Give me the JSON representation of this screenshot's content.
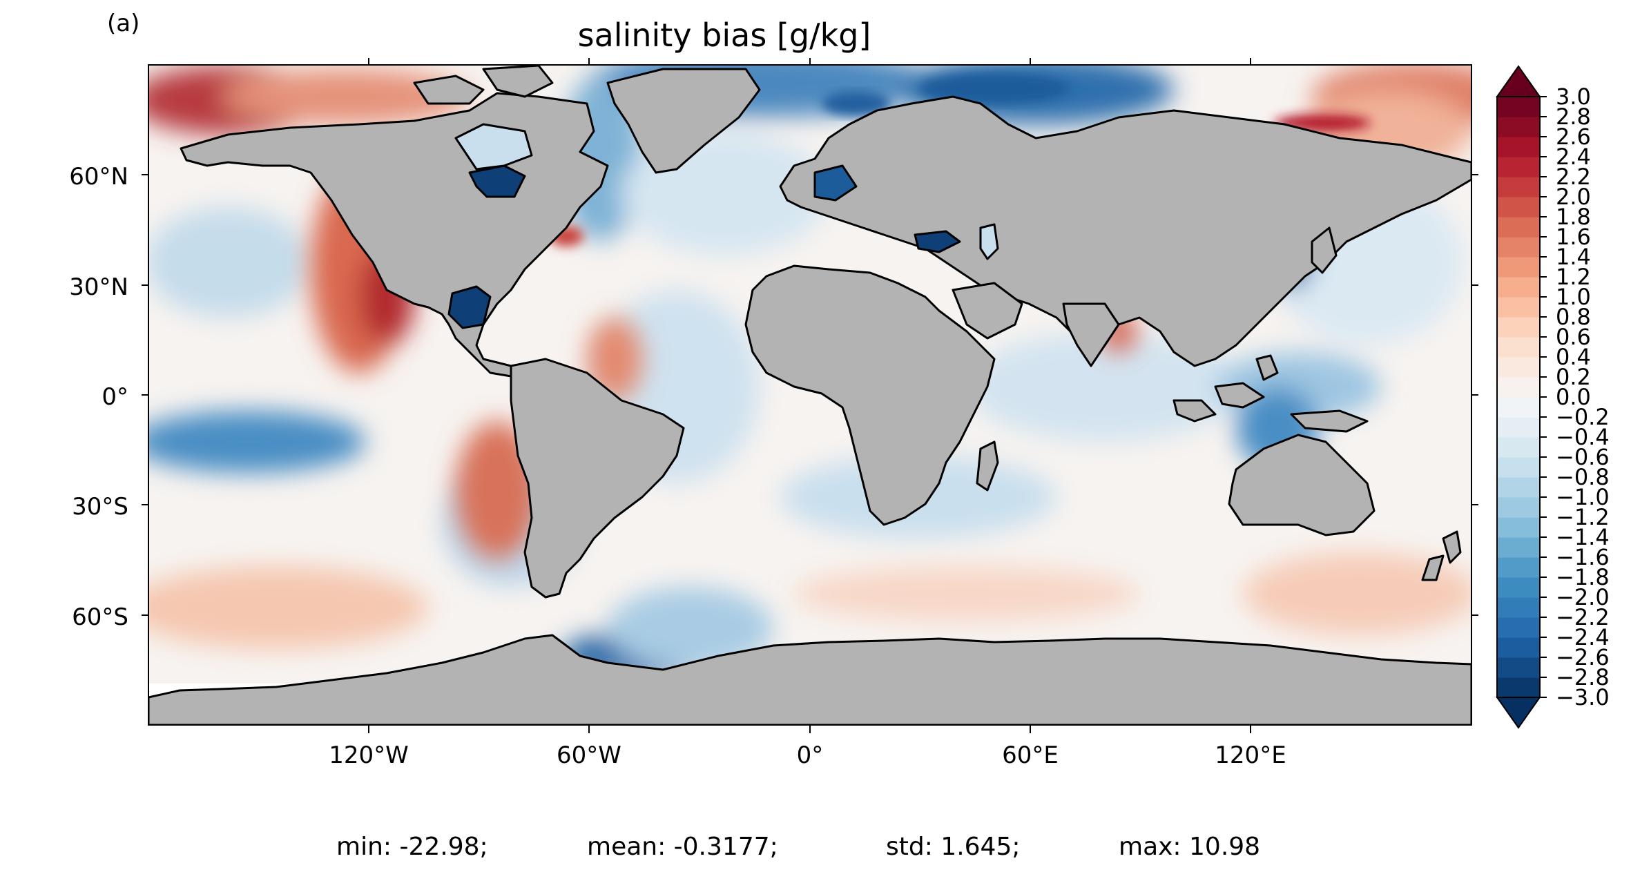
{
  "panel_label": "(a)",
  "title": "salinity bias [g/kg]",
  "lat_labels": [
    "60°N",
    "30°N",
    "0°",
    "30°S",
    "60°S"
  ],
  "lon_labels": [
    "120°W",
    "60°W",
    "0°",
    "60°E",
    "120°E"
  ],
  "colorbar": {
    "min": -3.0,
    "max": 3.0,
    "step": 0.2,
    "colormap": "RdBu_r",
    "extend": "both",
    "tick_labels": [
      "3.0",
      "2.8",
      "2.6",
      "2.4",
      "2.2",
      "2.0",
      "1.8",
      "1.6",
      "1.4",
      "1.2",
      "1.0",
      "0.8",
      "0.6",
      "0.4",
      "0.2",
      "0.0",
      "−0.2",
      "−0.4",
      "−0.6",
      "−0.8",
      "−1.0",
      "−1.2",
      "−1.4",
      "−1.6",
      "−1.8",
      "−2.0",
      "−2.2",
      "−2.4",
      "−2.6",
      "−2.8",
      "−3.0"
    ]
  },
  "stats": {
    "min": "min: -22.98;",
    "mean": "mean: -0.3177;",
    "std": "std: 1.645;",
    "max": "max: 10.98"
  },
  "colors": {
    "land": "#b3b3b3",
    "coastline": "#000000",
    "ocean_neutral": "#f7f7f7"
  }
}
